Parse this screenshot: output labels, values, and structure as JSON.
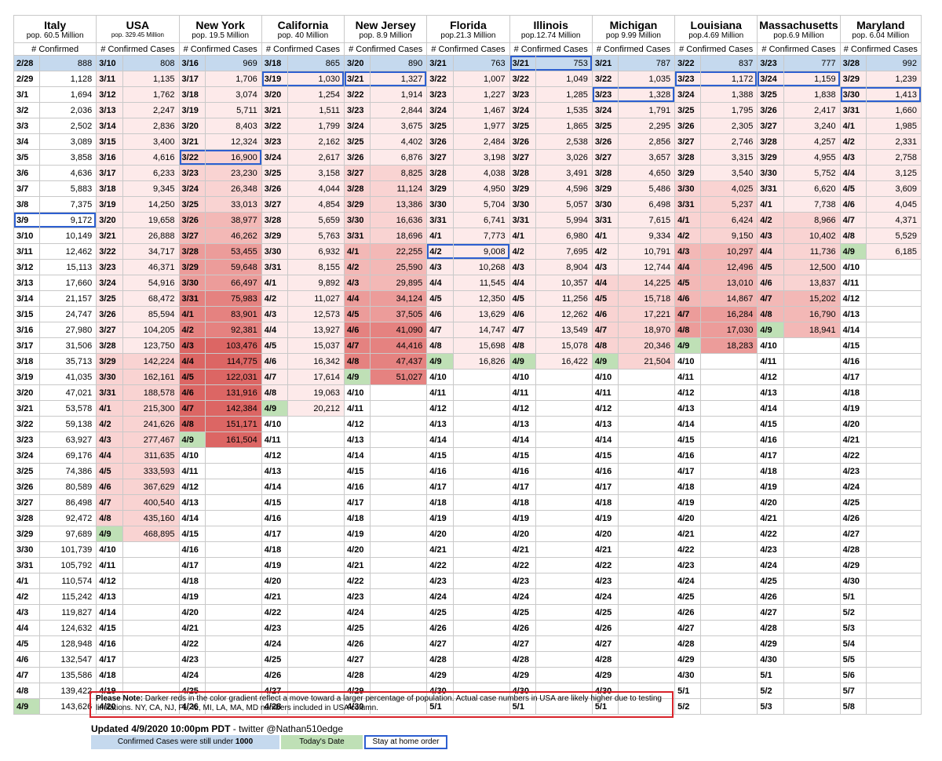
{
  "colors": {
    "under_1000": "#c5d9ee",
    "today": "#bfe0b6",
    "stay_at_home_border": "#2d5fd0",
    "note_border": "#d8232a",
    "gradient_light": "#fde9e9",
    "gradient_dark": "#dc5e5c"
  },
  "columns": [
    {
      "name": "Italy",
      "pop": "pop. 60.5 Million",
      "header": "# Confirmed",
      "start_date": "2/28",
      "values": [
        "888",
        "1,128",
        "1,694",
        "2,036",
        "2,502",
        "3,089",
        "3,858",
        "4,636",
        "5,883",
        "7,375",
        "9,172",
        "10,149",
        "12,462",
        "15,113",
        "17,660",
        "21,157",
        "24,747",
        "27,980",
        "31,506",
        "35,713",
        "41,035",
        "47,021",
        "53,578",
        "59,138",
        "63,927",
        "69,176",
        "74,386",
        "80,589",
        "86,498",
        "92,472",
        "97,689",
        "101,739",
        "105,792",
        "110,574",
        "115,242",
        "119,827",
        "124,632",
        "128,948",
        "132,547",
        "135,586",
        "139,422",
        "143,626"
      ],
      "dates": [
        "2/28",
        "2/29",
        "3/1",
        "3/2",
        "3/3",
        "3/4",
        "3/5",
        "3/6",
        "3/7",
        "3/8",
        "3/9",
        "3/10",
        "3/11",
        "3/12",
        "3/13",
        "3/14",
        "3/15",
        "3/16",
        "3/17",
        "3/18",
        "3/19",
        "3/20",
        "3/21",
        "3/22",
        "3/23",
        "3/24",
        "3/25",
        "3/26",
        "3/27",
        "3/28",
        "3/29",
        "3/30",
        "3/31",
        "4/1",
        "4/2",
        "4/3",
        "4/4",
        "4/5",
        "4/6",
        "4/7",
        "4/8",
        "4/9"
      ],
      "under_rows": 1,
      "stay_row": 10,
      "shade": [
        0,
        0,
        0,
        0,
        0,
        0,
        0,
        0,
        0,
        0,
        0,
        0,
        0,
        0,
        0,
        0,
        0,
        0,
        0,
        0,
        0,
        0,
        0,
        0,
        0,
        0,
        0,
        0,
        0,
        0,
        0,
        0,
        0,
        0,
        0,
        0,
        0,
        0,
        0,
        0,
        0,
        0
      ]
    },
    {
      "name": "USA",
      "pop": "pop. 329.45 Million",
      "header": "# Confirmed Cases",
      "dates": [
        "3/10",
        "3/11",
        "3/12",
        "3/13",
        "3/14",
        "3/15",
        "3/16",
        "3/17",
        "3/18",
        "3/19",
        "3/20",
        "3/21",
        "3/22",
        "3/23",
        "3/24",
        "3/25",
        "3/26",
        "3/27",
        "3/28",
        "3/29",
        "3/30",
        "3/31",
        "4/1",
        "4/2",
        "4/3",
        "4/4",
        "4/5",
        "4/6",
        "4/7",
        "4/8",
        "4/9",
        "4/10",
        "4/11",
        "4/12",
        "4/13",
        "4/14",
        "4/15",
        "4/16",
        "4/17",
        "4/18",
        "4/19",
        "4/20"
      ],
      "values": [
        "808",
        "1,135",
        "1,762",
        "2,247",
        "2,836",
        "3,400",
        "4,616",
        "6,233",
        "9,345",
        "14,250",
        "19,658",
        "26,888",
        "34,717",
        "46,371",
        "54,916",
        "68,472",
        "85,594",
        "104,205",
        "123,750",
        "142,224",
        "162,161",
        "188,578",
        "215,300",
        "241,626",
        "277,467",
        "311,635",
        "333,593",
        "367,629",
        "400,540",
        "435,160",
        "468,895"
      ],
      "under_rows": 1,
      "stay_row": -1,
      "shade": [
        0,
        1,
        1,
        1,
        1,
        1,
        1,
        1,
        1,
        1,
        1,
        1,
        1,
        1,
        1,
        1,
        1,
        1,
        1,
        2,
        2,
        2,
        2,
        2,
        2,
        2,
        2,
        2,
        2,
        2,
        2
      ]
    },
    {
      "name": "New York",
      "pop": "pop. 19.5 Million",
      "header": "# Confirmed Cases",
      "dates": [
        "3/16",
        "3/17",
        "3/18",
        "3/19",
        "3/20",
        "3/21",
        "3/22",
        "3/23",
        "3/24",
        "3/25",
        "3/26",
        "3/27",
        "3/28",
        "3/29",
        "3/30",
        "3/31",
        "4/1",
        "4/2",
        "4/3",
        "4/4",
        "4/5",
        "4/6",
        "4/7",
        "4/8",
        "4/9",
        "4/10",
        "4/11",
        "4/12",
        "4/13",
        "4/14",
        "4/15",
        "4/16",
        "4/17",
        "4/18",
        "4/19",
        "4/20",
        "4/21",
        "4/22",
        "4/23",
        "4/24",
        "4/25",
        "4/26"
      ],
      "values": [
        "969",
        "1,706",
        "3,074",
        "5,711",
        "8,403",
        "12,324",
        "16,900",
        "23,230",
        "26,348",
        "33,013",
        "38,977",
        "46,262",
        "53,455",
        "59,648",
        "66,497",
        "75,983",
        "83,901",
        "92,381",
        "103,476",
        "114,775",
        "122,031",
        "131,916",
        "142,384",
        "151,171",
        "161,504"
      ],
      "under_rows": 1,
      "stay_row": 6,
      "shade": [
        0,
        1,
        1,
        1,
        1,
        1,
        2,
        2,
        2,
        2,
        3,
        3,
        4,
        4,
        4,
        5,
        5,
        5,
        6,
        6,
        6,
        6,
        6,
        6,
        6
      ]
    },
    {
      "name": "California",
      "pop": "pop. 40 Million",
      "header": "# Confirmed Cases",
      "dates": [
        "3/18",
        "3/19",
        "3/20",
        "3/21",
        "3/22",
        "3/23",
        "3/24",
        "3/25",
        "3/26",
        "3/27",
        "3/28",
        "3/29",
        "3/30",
        "3/31",
        "4/1",
        "4/2",
        "4/3",
        "4/4",
        "4/5",
        "4/6",
        "4/7",
        "4/8",
        "4/9",
        "4/10",
        "4/11",
        "4/12",
        "4/13",
        "4/14",
        "4/15",
        "4/16",
        "4/17",
        "4/18",
        "4/19",
        "4/20",
        "4/21",
        "4/22",
        "4/23",
        "4/24",
        "4/25",
        "4/26",
        "4/27",
        "4/28"
      ],
      "values": [
        "865",
        "1,030",
        "1,254",
        "1,511",
        "1,799",
        "2,162",
        "2,617",
        "3,158",
        "4,044",
        "4,854",
        "5,659",
        "5,763",
        "6,932",
        "8,155",
        "9,892",
        "11,027",
        "12,573",
        "13,927",
        "15,037",
        "16,342",
        "17,614",
        "19,063",
        "20,212"
      ],
      "under_rows": 1,
      "stay_row": 1,
      "shade": [
        0,
        1,
        1,
        1,
        1,
        1,
        1,
        1,
        1,
        1,
        1,
        1,
        1,
        1,
        1,
        1,
        1,
        1,
        1,
        1,
        1,
        1,
        1
      ]
    },
    {
      "name": "New Jersey",
      "pop": "pop. 8.9 Million",
      "header": "# Confirmed Cases",
      "dates": [
        "3/20",
        "3/21",
        "3/22",
        "3/23",
        "3/24",
        "3/25",
        "3/26",
        "3/27",
        "3/28",
        "3/29",
        "3/30",
        "3/31",
        "4/1",
        "4/2",
        "4/3",
        "4/4",
        "4/5",
        "4/6",
        "4/7",
        "4/8",
        "4/9",
        "4/10",
        "4/11",
        "4/12",
        "4/13",
        "4/14",
        "4/15",
        "4/16",
        "4/17",
        "4/18",
        "4/19",
        "4/20",
        "4/21",
        "4/22",
        "4/23",
        "4/24",
        "4/25",
        "4/26",
        "4/27",
        "4/28",
        "4/29",
        "4/30"
      ],
      "values": [
        "890",
        "1,327",
        "1,914",
        "2,844",
        "3,675",
        "4,402",
        "6,876",
        "8,825",
        "11,124",
        "13,386",
        "16,636",
        "18,696",
        "22,255",
        "25,590",
        "29,895",
        "34,124",
        "37,505",
        "41,090",
        "44,416",
        "47,437",
        "51,027"
      ],
      "under_rows": 1,
      "stay_row": 1,
      "shade": [
        0,
        1,
        1,
        1,
        1,
        1,
        1,
        2,
        2,
        2,
        2,
        2,
        3,
        3,
        3,
        4,
        4,
        5,
        5,
        5,
        5
      ]
    },
    {
      "name": "Florida",
      "pop": "pop.21.3 Million",
      "header": "# Confirmed Cases",
      "dates": [
        "3/21",
        "3/22",
        "3/23",
        "3/24",
        "3/25",
        "3/26",
        "3/27",
        "3/28",
        "3/29",
        "3/30",
        "3/31",
        "4/1",
        "4/2",
        "4/3",
        "4/4",
        "4/5",
        "4/6",
        "4/7",
        "4/8",
        "4/9",
        "4/10",
        "4/11",
        "4/12",
        "4/13",
        "4/14",
        "4/15",
        "4/16",
        "4/17",
        "4/18",
        "4/19",
        "4/20",
        "4/21",
        "4/22",
        "4/23",
        "4/24",
        "4/25",
        "4/26",
        "4/27",
        "4/28",
        "4/29",
        "4/30",
        "5/1"
      ],
      "values": [
        "763",
        "1,007",
        "1,227",
        "1,467",
        "1,977",
        "2,484",
        "3,198",
        "4,038",
        "4,950",
        "5,704",
        "6,741",
        "7,773",
        "9,008",
        "10,268",
        "11,545",
        "12,350",
        "13,629",
        "14,747",
        "15,698",
        "16,826"
      ],
      "under_rows": 1,
      "stay_row": 12,
      "shade": [
        0,
        1,
        1,
        1,
        1,
        1,
        1,
        1,
        1,
        1,
        1,
        1,
        1,
        1,
        1,
        1,
        1,
        1,
        1,
        1
      ]
    },
    {
      "name": "Illinois",
      "pop": "pop.12.74 Million",
      "header": "# Confirmed Cases",
      "dates": [
        "3/21",
        "3/22",
        "3/23",
        "3/24",
        "3/25",
        "3/26",
        "3/27",
        "3/28",
        "3/29",
        "3/30",
        "3/31",
        "4/1",
        "4/2",
        "4/3",
        "4/4",
        "4/5",
        "4/6",
        "4/7",
        "4/8",
        "4/9",
        "4/10",
        "4/11",
        "4/12",
        "4/13",
        "4/14",
        "4/15",
        "4/16",
        "4/17",
        "4/18",
        "4/19",
        "4/20",
        "4/21",
        "4/22",
        "4/23",
        "4/24",
        "4/25",
        "4/26",
        "4/27",
        "4/28",
        "4/29",
        "4/30",
        "5/1"
      ],
      "values": [
        "753",
        "1,049",
        "1,285",
        "1,535",
        "1,865",
        "2,538",
        "3,026",
        "3,491",
        "4,596",
        "5,057",
        "5,994",
        "6,980",
        "7,695",
        "8,904",
        "10,357",
        "11,256",
        "12,262",
        "13,549",
        "15,078",
        "16,422"
      ],
      "under_rows": 1,
      "stay_row": 0,
      "shade": [
        0,
        1,
        1,
        1,
        1,
        1,
        1,
        1,
        1,
        1,
        1,
        1,
        1,
        1,
        1,
        1,
        1,
        1,
        1,
        1
      ]
    },
    {
      "name": "Michigan",
      "pop": "pop 9.99 Million",
      "header": "# Confirmed Cases",
      "dates": [
        "3/21",
        "3/22",
        "3/23",
        "3/24",
        "3/25",
        "3/26",
        "3/27",
        "3/28",
        "3/29",
        "3/30",
        "3/31",
        "4/1",
        "4/2",
        "4/3",
        "4/4",
        "4/5",
        "4/6",
        "4/7",
        "4/8",
        "4/9",
        "4/10",
        "4/11",
        "4/12",
        "4/13",
        "4/14",
        "4/15",
        "4/16",
        "4/17",
        "4/18",
        "4/19",
        "4/20",
        "4/21",
        "4/22",
        "4/23",
        "4/24",
        "4/25",
        "4/26",
        "4/27",
        "4/28",
        "4/29",
        "4/30",
        "5/1"
      ],
      "values": [
        "787",
        "1,035",
        "1,328",
        "1,791",
        "2,295",
        "2,856",
        "3,657",
        "4,650",
        "5,486",
        "6,498",
        "7,615",
        "9,334",
        "10,791",
        "12,744",
        "14,225",
        "15,718",
        "17,221",
        "18,970",
        "20,346",
        "21,504"
      ],
      "under_rows": 1,
      "stay_row": 2,
      "shade": [
        0,
        1,
        1,
        1,
        1,
        1,
        1,
        1,
        1,
        1,
        1,
        1,
        1,
        1,
        2,
        2,
        2,
        2,
        2,
        2
      ]
    },
    {
      "name": "Louisiana",
      "pop": "pop.4.69 Million",
      "header": "# Confirmed Cases",
      "dates": [
        "3/22",
        "3/23",
        "3/24",
        "3/25",
        "3/26",
        "3/27",
        "3/28",
        "3/29",
        "3/30",
        "3/31",
        "4/1",
        "4/2",
        "4/3",
        "4/4",
        "4/5",
        "4/6",
        "4/7",
        "4/8",
        "4/9",
        "4/10",
        "4/11",
        "4/12",
        "4/13",
        "4/14",
        "4/15",
        "4/16",
        "4/17",
        "4/18",
        "4/19",
        "4/20",
        "4/21",
        "4/22",
        "4/23",
        "4/24",
        "4/25",
        "4/26",
        "4/27",
        "4/28",
        "4/29",
        "4/30",
        "5/1",
        "5/2"
      ],
      "values": [
        "837",
        "1,172",
        "1,388",
        "1,795",
        "2,305",
        "2,746",
        "3,315",
        "3,540",
        "4,025",
        "5,237",
        "6,424",
        "9,150",
        "10,297",
        "12,496",
        "13,010",
        "14,867",
        "16,284",
        "17,030",
        "18,283"
      ],
      "under_rows": 1,
      "stay_row": 1,
      "shade": [
        0,
        1,
        1,
        1,
        1,
        1,
        1,
        1,
        2,
        2,
        2,
        2,
        3,
        3,
        3,
        3,
        4,
        4,
        4
      ]
    },
    {
      "name": "Massachusetts",
      "pop": "pop.6.9 Million",
      "header": "# Confirmed Cases",
      "dates": [
        "3/23",
        "3/24",
        "3/25",
        "3/26",
        "3/27",
        "3/28",
        "3/29",
        "3/30",
        "3/31",
        "4/1",
        "4/2",
        "4/3",
        "4/4",
        "4/5",
        "4/6",
        "4/7",
        "4/8",
        "4/9",
        "4/10",
        "4/11",
        "4/12",
        "4/13",
        "4/14",
        "4/15",
        "4/16",
        "4/17",
        "4/18",
        "4/19",
        "4/20",
        "4/21",
        "4/22",
        "4/23",
        "4/24",
        "4/25",
        "4/26",
        "4/27",
        "4/28",
        "4/29",
        "4/30",
        "5/1",
        "5/2",
        "5/3"
      ],
      "values": [
        "777",
        "1,159",
        "1,838",
        "2,417",
        "3,240",
        "4,257",
        "4,955",
        "5,752",
        "6,620",
        "7,738",
        "8,966",
        "10,402",
        "11,736",
        "12,500",
        "13,837",
        "15,202",
        "16,790",
        "18,941"
      ],
      "under_rows": 1,
      "stay_row": 1,
      "shade": [
        0,
        1,
        1,
        1,
        1,
        1,
        1,
        1,
        1,
        1,
        2,
        2,
        2,
        2,
        2,
        3,
        3,
        3
      ]
    },
    {
      "name": "Maryland",
      "pop": "pop. 6.04 Million",
      "header": "# Confirmed Cases",
      "dates": [
        "3/28",
        "3/29",
        "3/30",
        "3/31",
        "4/1",
        "4/2",
        "4/3",
        "4/4",
        "4/5",
        "4/6",
        "4/7",
        "4/8",
        "4/9",
        "4/10",
        "4/11",
        "4/12",
        "4/13",
        "4/14",
        "4/15",
        "4/16",
        "4/17",
        "4/18",
        "4/19",
        "4/20",
        "4/21",
        "4/22",
        "4/23",
        "4/24",
        "4/25",
        "4/26",
        "4/27",
        "4/28",
        "4/29",
        "4/30",
        "5/1",
        "5/2",
        "5/3",
        "5/4",
        "5/5",
        "5/6",
        "5/7",
        "5/8"
      ],
      "values": [
        "992",
        "1,239",
        "1,413",
        "1,660",
        "1,985",
        "2,331",
        "2,758",
        "3,125",
        "3,609",
        "4,045",
        "4,371",
        "5,529",
        "6,185"
      ],
      "under_rows": 1,
      "stay_row": 2,
      "shade": [
        0,
        1,
        1,
        1,
        1,
        1,
        1,
        1,
        1,
        1,
        1,
        1,
        1
      ]
    }
  ],
  "note": {
    "label": "Please Note:",
    "text": " Darker reds in the color gradient reflect a move toward a larger percentage of population. Actual case numbers in USA are likely higher due to testing limitations. NY, CA, NJ, FL, IL, MI, LA, MA, MD numbers included in USA column."
  },
  "updated": {
    "text": "Updated 4/9/2020 10:00pm PDT",
    "twitter": " - twitter @Nathan510edge"
  },
  "legend": {
    "under": "Confirmed Cases were still under ",
    "under_bold": "1000",
    "today": "Today's Date",
    "stay": "Stay at home order"
  }
}
